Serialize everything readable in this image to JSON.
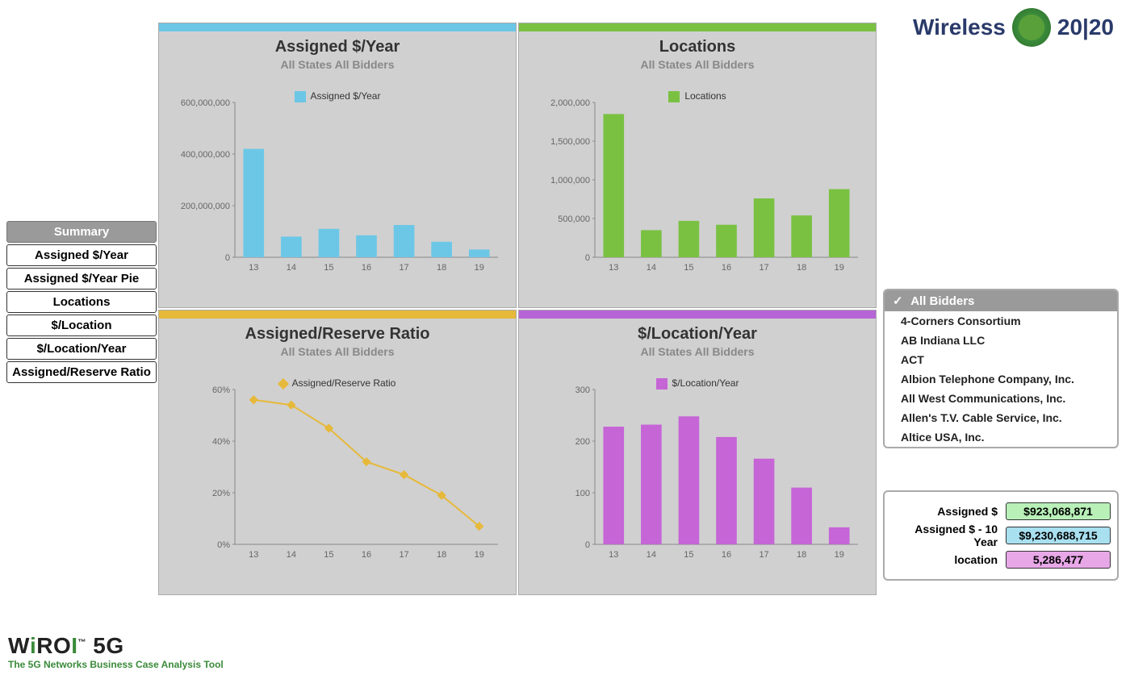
{
  "brand": {
    "top_text_left": "Wireless",
    "top_text_right": "20|20",
    "bottom_main_a": "W",
    "bottom_main_b": "i",
    "bottom_main_c": "RO",
    "bottom_main_d": "I",
    "bottom_main_tm": "™",
    "bottom_main_e": " 5G",
    "bottom_sub": "The 5G Networks Business Case Analysis Tool"
  },
  "nav": [
    {
      "label": "Summary",
      "active": true
    },
    {
      "label": "Assigned $/Year",
      "active": false
    },
    {
      "label": "Assigned $/Year Pie",
      "active": false
    },
    {
      "label": "Locations",
      "active": false
    },
    {
      "label": "$/Location",
      "active": false
    },
    {
      "label": "$/Location/Year",
      "active": false
    },
    {
      "label": "Assigned/Reserve Ratio",
      "active": false
    }
  ],
  "subtitle_all": "All States All Bidders",
  "charts": {
    "assigned": {
      "title": "Assigned $/Year",
      "legend": "Assigned $/Year",
      "type": "bar",
      "stripe": "#6cc7e6",
      "color": "#6cc7e6",
      "categories": [
        "13",
        "14",
        "15",
        "16",
        "17",
        "18",
        "19"
      ],
      "values": [
        420000000,
        80000000,
        110000000,
        85000000,
        125000000,
        60000000,
        30000000
      ],
      "ymax": 600000000,
      "ytick": 200000000,
      "yformat": "num",
      "bar_width": 0.55
    },
    "locations": {
      "title": "Locations",
      "legend": "Locations",
      "type": "bar",
      "stripe": "#7ac142",
      "color": "#7ac142",
      "categories": [
        "13",
        "14",
        "15",
        "16",
        "17",
        "18",
        "19"
      ],
      "values": [
        1850000,
        350000,
        470000,
        420000,
        760000,
        540000,
        880000
      ],
      "ymax": 2000000,
      "ytick": 500000,
      "yformat": "num",
      "bar_width": 0.55
    },
    "ratio": {
      "title": "Assigned/Reserve Ratio",
      "legend": "Assigned/Reserve Ratio",
      "type": "line",
      "stripe": "#e6b93a",
      "color": "#e6b93a",
      "categories": [
        "13",
        "14",
        "15",
        "16",
        "17",
        "18",
        "19"
      ],
      "values": [
        56,
        54,
        45,
        32,
        27,
        19,
        7
      ],
      "ymax": 60,
      "ytick": 20,
      "yformat": "pct",
      "marker": "diamond",
      "line_width": 2
    },
    "perloc": {
      "title": "$/Location/Year",
      "legend": "$/Location/Year",
      "type": "bar",
      "stripe": "#b565d6",
      "color": "#c565d6",
      "categories": [
        "13",
        "14",
        "15",
        "16",
        "17",
        "18",
        "19"
      ],
      "values": [
        228,
        232,
        248,
        208,
        166,
        110,
        33
      ],
      "ymax": 300,
      "ytick": 100,
      "yformat": "num",
      "bar_width": 0.55
    }
  },
  "bidders": {
    "header": "All Bidders",
    "options": [
      "4-Corners Consortium",
      "AB Indiana LLC",
      "ACT",
      "Albion Telephone Company, Inc.",
      "All West Communications, Inc.",
      "Allen's T.V. Cable Service, Inc.",
      "Altice USA, Inc."
    ]
  },
  "stats": [
    {
      "label": "Assigned $",
      "value": "$923,068,871",
      "bg": "#b8f0b8"
    },
    {
      "label": "Assigned $ - 10 Year",
      "value": "$9,230,688,715",
      "bg": "#a8e0f0"
    },
    {
      "label": "location",
      "value": "5,286,477",
      "bg": "#e8a8e8"
    }
  ]
}
